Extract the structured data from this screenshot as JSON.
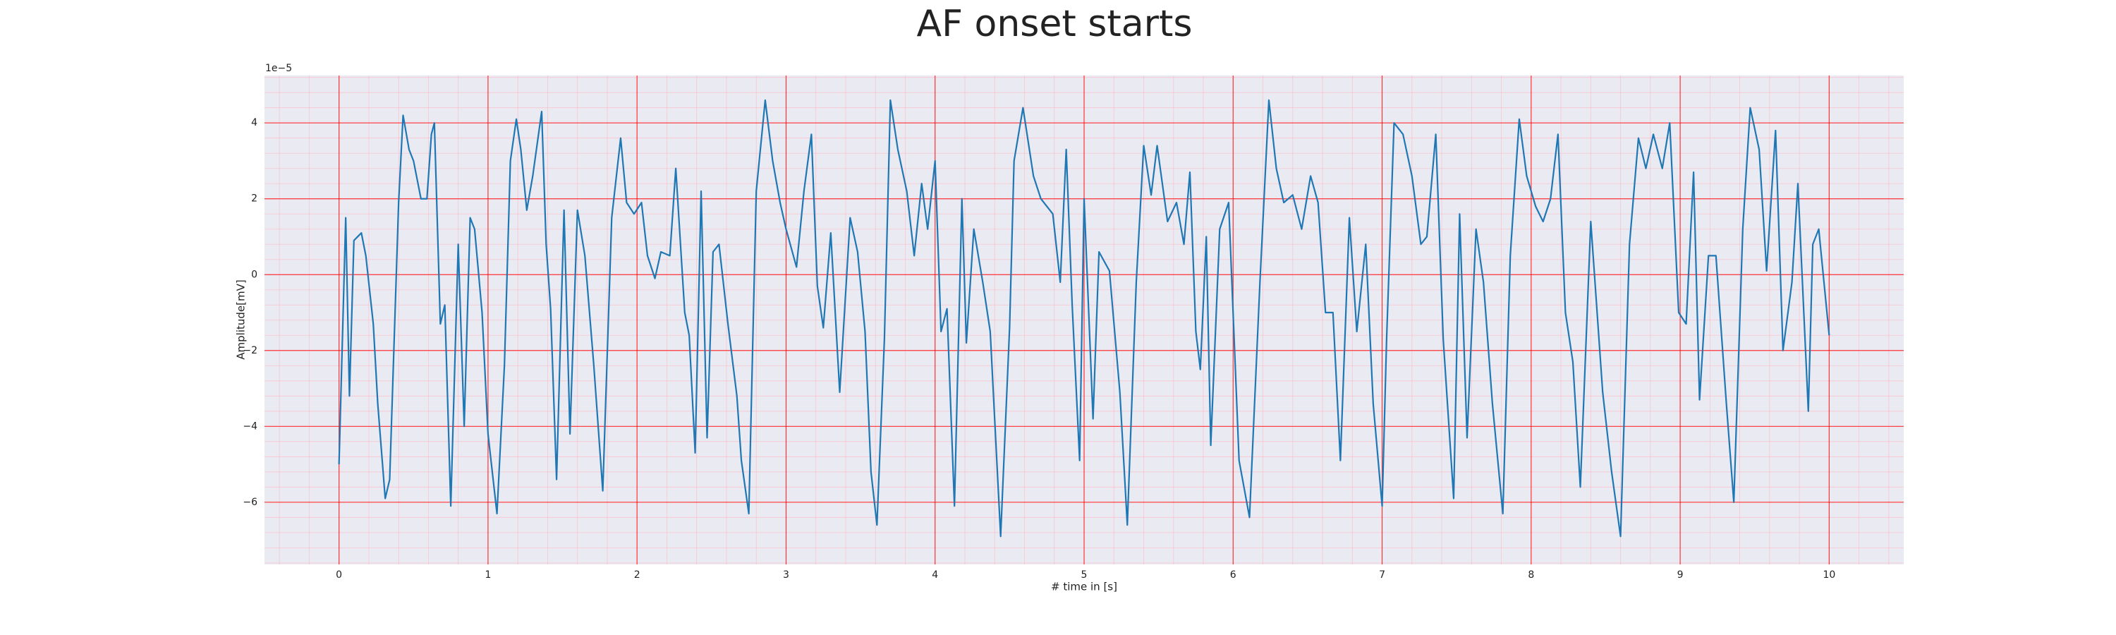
{
  "chart_data": {
    "type": "line",
    "title": "AF onset starts",
    "x_label": "# time in [s]",
    "y_label": "Amplitude[mV]",
    "y_offset_label": "1e−5",
    "xlim": [
      -0.5,
      10.5
    ],
    "ylim": [
      -7.64,
      5.25
    ],
    "xticks": [
      0,
      1,
      2,
      3,
      4,
      5,
      6,
      7,
      8,
      9,
      10
    ],
    "yticks": [
      {
        "value": -6,
        "label": "−6"
      },
      {
        "value": -4,
        "label": "−4"
      },
      {
        "value": -2,
        "label": "−2"
      },
      0,
      2,
      4
    ],
    "grid": true,
    "minor_grid": true,
    "grid_color": "#ff0000",
    "minor_grid_color": "#ffb6c1",
    "background": "#eaeaf2",
    "x": [
      0,
      0.045,
      0.07,
      0.1,
      0.15,
      0.18,
      0.23,
      0.26,
      0.31,
      0.34,
      0.4,
      0.43,
      0.47,
      0.5,
      0.55,
      0.59,
      0.62,
      0.64,
      0.68,
      0.71,
      0.75,
      0.8,
      0.84,
      0.88,
      0.91,
      0.96,
      1.0,
      1.06,
      1.11,
      1.15,
      1.19,
      1.22,
      1.26,
      1.3,
      1.36,
      1.39,
      1.42,
      1.46,
      1.51,
      1.55,
      1.6,
      1.65,
      1.71,
      1.77,
      1.83,
      1.89,
      1.93,
      1.98,
      2.03,
      2.07,
      2.12,
      2.16,
      2.22,
      2.26,
      2.32,
      2.35,
      2.39,
      2.43,
      2.47,
      2.51,
      2.55,
      2.61,
      2.67,
      2.7,
      2.75,
      2.8,
      2.86,
      2.91,
      2.96,
      3.0,
      3.07,
      3.12,
      3.17,
      3.21,
      3.25,
      3.3,
      3.36,
      3.43,
      3.48,
      3.53,
      3.57,
      3.61,
      3.66,
      3.7,
      3.75,
      3.81,
      3.86,
      3.91,
      3.95,
      4.0,
      4.04,
      4.08,
      4.13,
      4.18,
      4.21,
      4.26,
      4.32,
      4.37,
      4.44,
      4.5,
      4.53,
      4.59,
      4.66,
      4.71,
      4.79,
      4.84,
      4.88,
      4.92,
      4.97,
      5.0,
      5.06,
      5.1,
      5.17,
      5.24,
      5.29,
      5.35,
      5.4,
      5.45,
      5.49,
      5.56,
      5.62,
      5.67,
      5.71,
      5.75,
      5.78,
      5.82,
      5.85,
      5.91,
      5.97,
      6.04,
      6.11,
      6.18,
      6.24,
      6.29,
      6.34,
      6.4,
      6.46,
      6.52,
      6.57,
      6.62,
      6.67,
      6.72,
      6.78,
      6.83,
      6.89,
      6.94,
      7.0,
      7.03,
      7.08,
      7.14,
      7.2,
      7.26,
      7.3,
      7.36,
      7.41,
      7.48,
      7.52,
      7.57,
      7.63,
      7.68,
      7.74,
      7.81,
      7.86,
      7.92,
      7.97,
      8.03,
      8.08,
      8.13,
      8.18,
      8.23,
      8.28,
      8.33,
      8.4,
      8.48,
      8.54,
      8.6,
      8.66,
      8.72,
      8.77,
      8.82,
      8.88,
      8.93,
      8.99,
      9.04,
      9.09,
      9.13,
      9.19,
      9.24,
      9.31,
      9.36,
      9.42,
      9.47,
      9.53,
      9.58,
      9.64,
      9.69,
      9.75,
      9.79,
      9.86,
      9.89,
      9.93,
      10.0
    ],
    "series": [
      {
        "color": "#1f77b4",
        "values": [
          -5,
          1.5,
          -3.2,
          0.9,
          1.1,
          0.5,
          -1.3,
          -3.4,
          -5.9,
          -5.4,
          1.9,
          4.2,
          3.3,
          3.0,
          2.0,
          2.0,
          3.7,
          4.0,
          -1.3,
          -0.8,
          -6.1,
          0.8,
          -4.0,
          1.5,
          1.2,
          -1.0,
          -4.2,
          -6.3,
          -2.4,
          3.0,
          4.1,
          3.3,
          1.7,
          2.6,
          4.3,
          0.8,
          -0.9,
          -5.4,
          1.7,
          -4.2,
          1.7,
          0.5,
          -2.4,
          -5.7,
          1.5,
          3.6,
          1.9,
          1.6,
          1.9,
          0.5,
          -0.1,
          0.6,
          0.5,
          2.8,
          -1.0,
          -1.6,
          -4.7,
          2.2,
          -4.3,
          0.6,
          0.8,
          -1.3,
          -3.2,
          -4.9,
          -6.3,
          2.2,
          4.6,
          3.0,
          1.9,
          1.2,
          0.2,
          2.2,
          3.7,
          -0.3,
          -1.4,
          1.1,
          -3.1,
          1.5,
          0.6,
          -1.5,
          -5.2,
          -6.6,
          -1.7,
          4.6,
          3.3,
          2.2,
          0.5,
          2.4,
          1.2,
          3.0,
          -1.5,
          -0.9,
          -6.1,
          2.0,
          -1.8,
          1.2,
          -0.2,
          -1.5,
          -6.9,
          -1.4,
          3.0,
          4.4,
          2.6,
          2.0,
          1.6,
          -0.2,
          3.3,
          -0.8,
          -4.9,
          2.0,
          -3.8,
          0.6,
          0.1,
          -3.1,
          -6.6,
          -0.2,
          3.4,
          2.1,
          3.4,
          1.4,
          1.9,
          0.8,
          2.7,
          -1.5,
          -2.5,
          1.0,
          -4.5,
          1.2,
          1.9,
          -4.9,
          -6.4,
          -0.2,
          4.6,
          2.8,
          1.9,
          2.1,
          1.2,
          2.6,
          1.9,
          -1.0,
          -1.0,
          -4.9,
          1.5,
          -1.5,
          0.8,
          -3.4,
          -6.1,
          -1.7,
          4.0,
          3.7,
          2.6,
          0.8,
          1.0,
          3.7,
          -1.7,
          -5.9,
          1.6,
          -4.3,
          1.2,
          -0.2,
          -3.4,
          -6.3,
          0.5,
          4.1,
          2.6,
          1.8,
          1.4,
          2.0,
          3.7,
          -1.0,
          -2.3,
          -5.6,
          1.4,
          -3.1,
          -5.2,
          -6.9,
          0.8,
          3.6,
          2.8,
          3.7,
          2.8,
          4.0,
          -1.0,
          -1.3,
          2.7,
          -3.3,
          0.5,
          0.5,
          -3.4,
          -6.0,
          1.2,
          4.4,
          3.3,
          0.1,
          3.8,
          -2.0,
          -0.2,
          2.4,
          -3.6,
          0.8,
          1.2,
          -1.6
        ]
      }
    ]
  }
}
